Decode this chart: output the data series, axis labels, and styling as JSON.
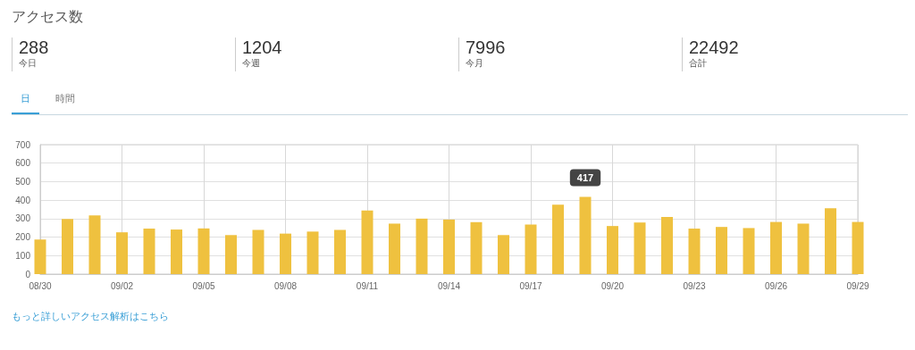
{
  "chart_data": {
    "type": "bar",
    "title": "アクセス数",
    "annotations": [
      "288",
      "今日",
      "1204",
      "今週",
      "7996",
      "今月",
      "22492",
      "合計",
      "日",
      "時間",
      "もっと詳しいアクセス解析はこちら"
    ],
    "categories": [
      "08/30",
      null,
      null,
      "09/02",
      null,
      null,
      "09/05",
      null,
      null,
      "09/08",
      null,
      null,
      "09/11",
      null,
      null,
      "09/14",
      null,
      null,
      "09/17",
      null,
      null,
      "09/20",
      null,
      null,
      "09/23",
      null,
      null,
      "09/26",
      null,
      null,
      "09/29"
    ],
    "values": [
      187,
      298,
      317,
      226,
      246,
      241,
      247,
      211,
      239,
      219,
      230,
      239,
      344,
      273,
      300,
      295,
      281,
      211,
      268,
      375,
      417,
      260,
      279,
      309,
      246,
      255,
      249,
      282,
      273,
      356,
      282
    ],
    "value_labels": [
      null,
      null,
      null,
      null,
      null,
      null,
      null,
      null,
      null,
      null,
      null,
      null,
      null,
      null,
      null,
      null,
      null,
      null,
      null,
      null,
      "417",
      null,
      null,
      null,
      null,
      null,
      null,
      null,
      null,
      null,
      null
    ],
    "color": "#efc13f",
    "ylim": [
      0,
      700
    ],
    "yticks": [
      0,
      100,
      200,
      300,
      400,
      500,
      600,
      700
    ],
    "grid": true
  }
}
